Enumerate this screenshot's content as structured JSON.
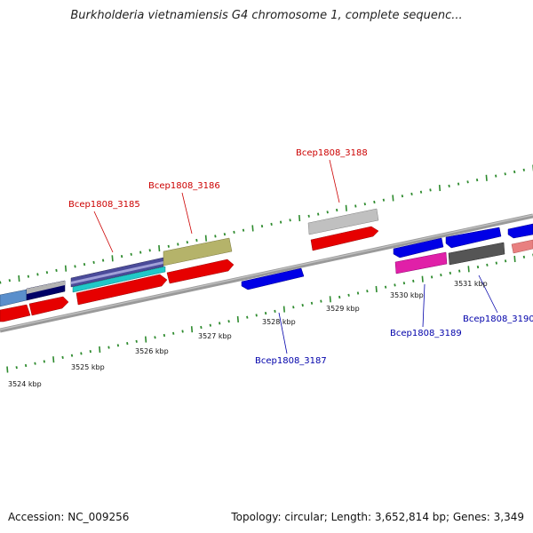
{
  "title": "Burkholderia vietnamiensis G4 chromosome 1, complete sequenc...",
  "footer": {
    "accession": "Accession: NC_009256",
    "summary": "Topology: circular; Length: 3,652,814 bp; Genes: 3,349"
  },
  "colors": {
    "forward_label": "#cc0000",
    "reverse_label": "#0000aa",
    "tick": "#2e8b2e",
    "backbone": "#8c8c8c"
  },
  "ticks": [
    {
      "label": "3524 kbp"
    },
    {
      "label": "3525 kbp"
    },
    {
      "label": "3526 kbp"
    },
    {
      "label": "3527 kbp"
    },
    {
      "label": "3528 kbp"
    },
    {
      "label": "3529 kbp"
    },
    {
      "label": "3530 kbp"
    },
    {
      "label": "3531 kbp"
    }
  ],
  "gene_labels": [
    {
      "name": "Bcep1808_3185",
      "strand": "forward"
    },
    {
      "name": "Bcep1808_3186",
      "strand": "forward"
    },
    {
      "name": "Bcep1808_3188",
      "strand": "forward"
    },
    {
      "name": "Bcep1808_3187",
      "strand": "reverse"
    },
    {
      "name": "Bcep1808_3189",
      "strand": "reverse"
    },
    {
      "name": "Bcep1808_3190",
      "strand": "reverse"
    }
  ]
}
